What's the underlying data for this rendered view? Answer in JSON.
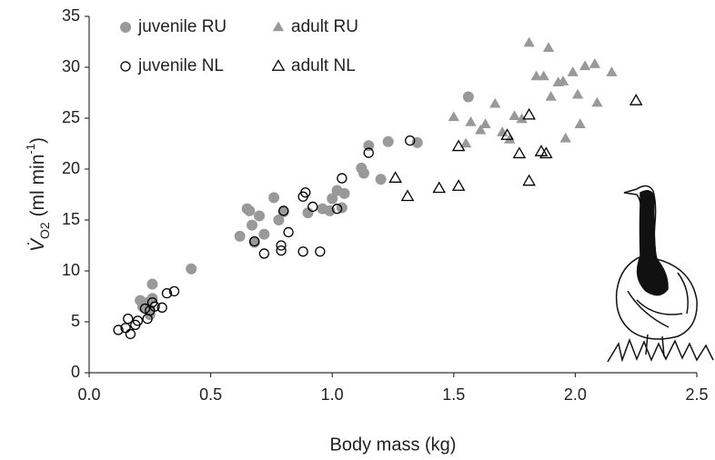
{
  "chart_data": {
    "type": "scatter",
    "xlabel": "Body mass (kg)",
    "ylabel_parts": [
      "V̇",
      "O2",
      " (ml min",
      "-1",
      ")"
    ],
    "xlim": [
      0,
      2.5
    ],
    "xticks": [
      {
        "value": 0,
        "label": "0.0"
      },
      0.5,
      {
        "value": 1,
        "label": "1.0"
      },
      1.5,
      {
        "value": 2,
        "label": "2.0"
      },
      2.5
    ],
    "ylim": [
      0,
      35
    ],
    "yticks": [
      0,
      5,
      10,
      15,
      20,
      25,
      30,
      35
    ],
    "grid": false,
    "legend": "upper left",
    "series": [
      {
        "name": "juvenile RU",
        "color": "#999999",
        "marker": "circle",
        "filled": true,
        "x": [
          0.21,
          0.22,
          0.24,
          0.25,
          0.26,
          0.26,
          0.25,
          0.42,
          0.62,
          0.65,
          0.66,
          0.67,
          0.7,
          0.68,
          0.72,
          0.76,
          0.78,
          0.8,
          0.9,
          0.96,
          0.99,
          1.0,
          1.02,
          1.05,
          1.04,
          1.12,
          1.13,
          1.15,
          1.2,
          1.23,
          1.35,
          1.56
        ],
        "values": [
          7.1,
          6.5,
          6.9,
          6.2,
          7.3,
          8.7,
          5.7,
          10.2,
          13.4,
          16.1,
          15.9,
          14.5,
          15.4,
          12.8,
          13.6,
          17.2,
          15.0,
          15.8,
          15.7,
          16.1,
          15.9,
          17.1,
          17.9,
          17.6,
          16.2,
          20.1,
          19.6,
          22.3,
          19.0,
          22.7,
          22.6,
          27.1
        ]
      },
      {
        "name": "adult RU",
        "color": "#999999",
        "marker": "triangle",
        "filled": true,
        "x": [
          1.5,
          1.55,
          1.57,
          1.61,
          1.63,
          1.67,
          1.7,
          1.73,
          1.75,
          1.78,
          1.81,
          1.84,
          1.87,
          1.89,
          1.9,
          1.93,
          1.95,
          1.96,
          1.99,
          2.01,
          2.02,
          2.04,
          2.08,
          2.09,
          2.15
        ],
        "values": [
          25.1,
          22.5,
          24.6,
          23.8,
          24.4,
          26.4,
          23.6,
          22.9,
          25.2,
          24.9,
          32.4,
          29.1,
          29.1,
          31.9,
          27.1,
          28.5,
          28.6,
          23.0,
          29.5,
          27.3,
          24.4,
          30.1,
          30.3,
          26.5,
          29.5
        ]
      },
      {
        "name": "juvenile NL",
        "color": "#000000",
        "marker": "circle",
        "filled": false,
        "x": [
          0.12,
          0.15,
          0.16,
          0.17,
          0.19,
          0.2,
          0.24,
          0.25,
          0.26,
          0.27,
          0.3,
          0.32,
          0.35,
          0.23,
          0.68,
          0.72,
          0.79,
          0.79,
          0.8,
          0.82,
          0.88,
          0.88,
          0.89,
          0.92,
          0.95,
          1.02,
          1.04,
          1.15,
          1.32
        ],
        "values": [
          4.2,
          4.4,
          5.3,
          3.8,
          4.7,
          5.1,
          5.3,
          6.1,
          6.9,
          6.5,
          6.4,
          7.8,
          8.0,
          6.3,
          12.9,
          11.7,
          12.5,
          12.0,
          15.9,
          13.8,
          11.9,
          17.3,
          17.7,
          16.3,
          11.9,
          16.1,
          19.1,
          21.6,
          22.8
        ]
      },
      {
        "name": "adult NL",
        "color": "#000000",
        "marker": "triangle",
        "filled": false,
        "x": [
          1.26,
          1.31,
          1.44,
          1.52,
          1.52,
          1.72,
          1.77,
          1.81,
          1.81,
          1.86,
          1.88,
          2.25
        ],
        "values": [
          19.1,
          17.3,
          18.1,
          18.3,
          22.2,
          23.3,
          21.5,
          25.3,
          18.8,
          21.7,
          21.5,
          26.7
        ]
      }
    ]
  }
}
